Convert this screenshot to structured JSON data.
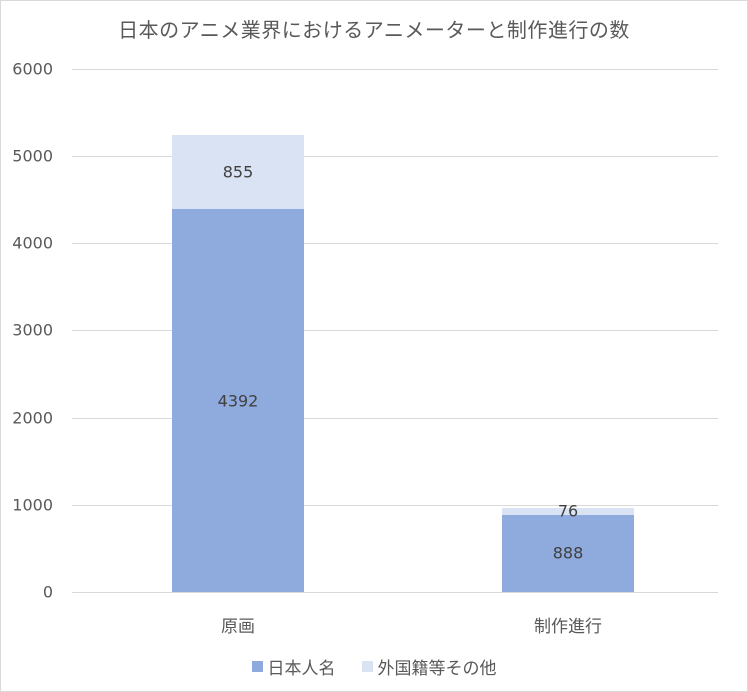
{
  "chart_data": {
    "type": "bar",
    "stacked": true,
    "title": "日本のアニメ業界におけるアニメーターと制作進行の数",
    "categories": [
      "原画",
      "制作進行"
    ],
    "series": [
      {
        "name": "日本人名",
        "values": [
          4392,
          888
        ],
        "color": "#8faadc"
      },
      {
        "name": "外国籍等その他",
        "values": [
          855,
          76
        ],
        "color": "#dae3f3"
      }
    ],
    "xlabel": "",
    "ylabel": "",
    "ylim": [
      0,
      6000
    ],
    "yticks": [
      "0",
      "1000",
      "2000",
      "3000",
      "4000",
      "5000",
      "6000"
    ],
    "grid": true,
    "legend_position": "bottom",
    "data_labels": {
      "genga_japanese": "4392",
      "genga_foreign": "855",
      "seisaku_japanese": "888",
      "seisaku_foreign": "76"
    }
  }
}
